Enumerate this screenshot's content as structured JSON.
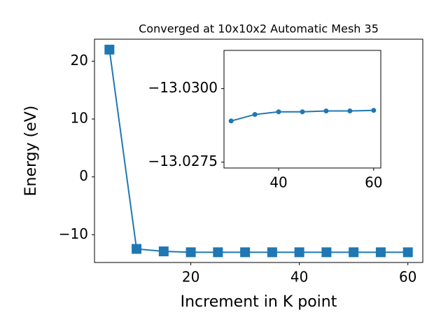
{
  "chart_data": [
    {
      "type": "line",
      "title": "Converged at 10x10x2 Automatic Mesh 35",
      "xlabel": "Increment in K point",
      "ylabel": "Energy (eV)",
      "x": [
        5,
        10,
        15,
        20,
        25,
        30,
        35,
        40,
        45,
        50,
        55,
        60
      ],
      "series": [
        {
          "color": "#1f77b4",
          "marker": "square",
          "values": [
            22,
            -12.45,
            -12.88,
            -13.028,
            -13.0285,
            -13.0289,
            -13.0291,
            -13.0292,
            -13.0292,
            -13.0292,
            -13.0293,
            -13.0293
          ]
        }
      ],
      "xlim": [
        2.25,
        62.75
      ],
      "xticks": [
        20,
        40,
        60
      ],
      "ylim": [
        -14.8,
        23.8
      ],
      "yticks": [
        {
          "value": -10,
          "label": "−10"
        },
        0,
        10,
        20
      ]
    },
    {
      "type": "line",
      "x": [
        30,
        35,
        40,
        45,
        50,
        55,
        60
      ],
      "series": [
        {
          "color": "#1f77b4",
          "marker": "circle",
          "values": [
            -13.0289,
            -13.02912,
            -13.02921,
            -13.02921,
            -13.02924,
            -13.02924,
            -13.02926
          ]
        }
      ],
      "xlim": [
        28.5,
        61.5
      ],
      "xticks": [
        40,
        60
      ],
      "ylim": [
        -13.0273,
        -13.0313
      ],
      "yticks": [
        {
          "value": -13.03,
          "label": "−13.0300"
        },
        {
          "value": -13.0275,
          "label": "−13.0275"
        }
      ]
    }
  ]
}
